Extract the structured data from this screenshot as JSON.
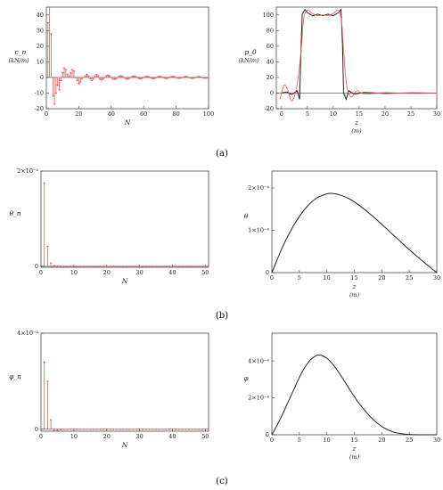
{
  "panel_labels": [
    "(a)",
    "(b)",
    "(c)"
  ],
  "chart_data": [
    {
      "id": "cn",
      "type": "bar",
      "ylabel": "c_n",
      "ylabel_unit": "(kN/m)",
      "xlabel": "N",
      "xlim": [
        0,
        100
      ],
      "ylim": [
        -20,
        45
      ],
      "xticks": [
        0,
        20,
        40,
        60,
        80,
        100
      ],
      "yticks": [
        -20,
        -10,
        0,
        10,
        20,
        30,
        40
      ],
      "color": "#e8585c",
      "x": [
        1,
        2,
        3,
        4,
        5,
        6,
        7,
        8,
        9,
        10,
        11,
        12,
        13,
        14,
        15,
        16,
        17,
        18,
        19,
        20,
        21,
        22,
        23,
        24,
        25,
        26,
        27,
        28,
        29,
        30,
        31,
        32,
        33,
        34,
        35,
        36,
        37,
        38,
        39,
        40,
        41,
        42,
        43,
        44,
        45,
        46,
        47,
        48,
        49,
        50,
        51,
        52,
        53,
        54,
        55,
        56,
        57,
        58,
        59,
        60,
        61,
        62,
        63,
        64,
        65,
        66,
        67,
        68,
        69,
        70,
        71,
        72,
        73,
        74,
        75,
        76,
        77,
        78,
        79,
        80,
        81,
        82,
        83,
        84,
        85,
        86,
        87,
        88,
        89,
        90,
        91,
        92,
        93,
        94,
        95,
        96,
        97,
        98,
        99,
        100
      ],
      "values": [
        35,
        45,
        28,
        -12,
        -17,
        -10,
        -5,
        -8,
        -2,
        3,
        6,
        5,
        2,
        1,
        3,
        5,
        4,
        0,
        -2,
        -4,
        -3,
        -1,
        0,
        1,
        2,
        1,
        -1,
        -2,
        -1,
        1,
        2,
        1,
        -1,
        -1.5,
        -1,
        0,
        1,
        1.5,
        1,
        0,
        -1,
        -1.2,
        -0.8,
        0,
        0.8,
        1.1,
        0.7,
        0,
        -0.7,
        -1,
        -0.6,
        0,
        0.6,
        0.9,
        0.6,
        0,
        -0.6,
        -0.9,
        -0.5,
        0,
        0.5,
        0.8,
        0.5,
        0,
        -0.5,
        -0.8,
        -0.5,
        0,
        0.5,
        0.7,
        0.4,
        0,
        -0.4,
        -0.7,
        -0.4,
        0,
        0.4,
        0.7,
        0.4,
        0,
        -0.4,
        -0.6,
        -0.4,
        0,
        0.4,
        0.6,
        0.4,
        0,
        -0.4,
        -0.6,
        -0.3,
        0,
        0.3,
        0.6,
        0.3,
        0,
        -0.3,
        -0.5,
        -0.3,
        0
      ]
    },
    {
      "id": "p0",
      "type": "line",
      "ylabel": "p_0",
      "ylabel_unit": "(kN/m)",
      "xlabel": "z",
      "xlabel_unit": "(m)",
      "xlim": [
        -1,
        30
      ],
      "ylim": [
        -20,
        110
      ],
      "xticks": [
        0,
        5,
        10,
        15,
        20,
        25,
        30
      ],
      "yticks": [
        -20,
        0,
        20,
        40,
        60,
        80,
        100
      ],
      "series": [
        {
          "color": "#222222",
          "profile": "gibbs_sharp",
          "x": [
            0,
            1,
            2,
            3,
            3.5,
            3.7,
            4,
            4.5,
            5,
            6,
            7,
            8,
            9,
            10,
            11,
            11.5,
            11.8,
            12,
            12.5,
            13,
            14,
            16,
            20,
            25,
            30
          ],
          "y": [
            0,
            1.5,
            -2,
            3,
            -8,
            40,
            100,
            107,
            103,
            99,
            101,
            99,
            101,
            99,
            103,
            107,
            60,
            0,
            -8,
            3,
            -1.5,
            0.8,
            -0.5,
            0.3,
            0
          ]
        },
        {
          "color": "#e8585c",
          "profile": "smooth",
          "x": [
            -0.3,
            0.5,
            1.2,
            2,
            3,
            3.8,
            4.3,
            5,
            6,
            7,
            8,
            9,
            10,
            11,
            11.6,
            12,
            12.6,
            13.5,
            14.5,
            16,
            20,
            25,
            30
          ],
          "y": [
            -8,
            10,
            4,
            -10,
            10,
            55,
            95,
            106,
            102,
            99,
            100,
            99,
            102,
            106,
            92,
            55,
            10,
            -5,
            3,
            -1,
            0.5,
            -0.3,
            0
          ]
        }
      ]
    },
    {
      "id": "theta_n",
      "type": "bar",
      "ylabel": "θ_n",
      "xlabel": "N",
      "xlim": [
        0,
        51
      ],
      "ylim": [
        -2e-06,
        0.0002
      ],
      "xticks": [
        0,
        10,
        20,
        30,
        40,
        50
      ],
      "ytick_labels": [
        "0",
        "2×10⁻⁴"
      ],
      "ytick_values": [
        0,
        0.0002
      ],
      "color": "#e8585c",
      "x": [
        1,
        2,
        3,
        4,
        5,
        6,
        7,
        8,
        9,
        10,
        11,
        12,
        13,
        14,
        15,
        16,
        17,
        18,
        19,
        20,
        21,
        22,
        23,
        24,
        25,
        26,
        27,
        28,
        29,
        30,
        31,
        32,
        33,
        34,
        35,
        36,
        37,
        38,
        39,
        40,
        41,
        42,
        43,
        44,
        45,
        46,
        47,
        48,
        49,
        50
      ],
      "values": [
        0.000175,
        4.2e-05,
        7e-06,
        1.5e-06,
        5e-07,
        2e-07,
        1e-07,
        0,
        0,
        0,
        0,
        0,
        0,
        0,
        0,
        0,
        0,
        0,
        0,
        0,
        0,
        0,
        0,
        0,
        0,
        0,
        0,
        0,
        0,
        0,
        0,
        0,
        0,
        0,
        0,
        0,
        0,
        0,
        0,
        0,
        0,
        0,
        0,
        0,
        0,
        0,
        0,
        0,
        0,
        0
      ]
    },
    {
      "id": "theta",
      "type": "line",
      "ylabel": "θ",
      "xlabel": "z",
      "xlabel_unit": "(m)",
      "xlim": [
        0,
        30
      ],
      "ylim": [
        0,
        0.00024
      ],
      "xticks": [
        0,
        5,
        10,
        15,
        20,
        25,
        30
      ],
      "ytick_labels": [
        "0",
        "1×10⁻⁴",
        "2×10⁻⁴"
      ],
      "ytick_values": [
        0,
        0.0001,
        0.0002
      ],
      "series": [
        {
          "color": "#222222",
          "x": [
            0,
            2,
            4,
            6,
            8,
            10,
            11,
            12,
            14,
            16,
            18,
            20,
            22,
            24,
            26,
            28,
            30
          ],
          "y": [
            0,
            6.2e-05,
            0.000112,
            0.00015,
            0.000175,
            0.000186,
            0.000187,
            0.000185,
            0.000175,
            0.000158,
            0.000137,
            0.000114,
            9e-05,
            6.6e-05,
            4.3e-05,
            2.1e-05,
            0
          ]
        }
      ]
    },
    {
      "id": "phi_n",
      "type": "bar",
      "ylabel": "φ_n",
      "xlabel": "N",
      "xlim": [
        0,
        51
      ],
      "ylim": [
        -8e-06,
        0.0004
      ],
      "xticks": [
        0,
        10,
        20,
        30,
        40,
        50
      ],
      "ytick_labels": [
        "0",
        "4×10⁻⁴"
      ],
      "ytick_values": [
        0,
        0.0004
      ],
      "color": "#e8585c",
      "x": [
        1,
        2,
        3,
        4,
        5,
        6,
        7,
        8,
        9,
        10,
        11,
        12,
        13,
        14,
        15,
        16,
        17,
        18,
        19,
        20,
        21,
        22,
        23,
        24,
        25,
        26,
        27,
        28,
        29,
        30,
        31,
        32,
        33,
        34,
        35,
        36,
        37,
        38,
        39,
        40,
        41,
        42,
        43,
        44,
        45,
        46,
        47,
        48,
        49,
        50
      ],
      "values": [
        0.00028,
        0.0002,
        4e-05,
        -5e-06,
        -4e-06,
        -2e-06,
        -1e-06,
        0,
        0,
        0,
        0,
        0,
        0,
        0,
        0,
        0,
        0,
        0,
        0,
        0,
        0,
        0,
        0,
        0,
        0,
        0,
        0,
        0,
        0,
        0,
        0,
        0,
        0,
        0,
        0,
        0,
        0,
        0,
        0,
        0,
        0,
        0,
        0,
        0,
        0,
        0,
        0,
        0,
        0,
        0
      ]
    },
    {
      "id": "phi",
      "type": "line",
      "ylabel": "φ",
      "xlabel": "z",
      "xlabel_unit": "(m)",
      "xlim": [
        0,
        30
      ],
      "ylim": [
        0,
        0.00055
      ],
      "xticks": [
        0,
        5,
        10,
        15,
        20,
        25,
        30
      ],
      "ytick_labels": [
        "0",
        "2×10⁻⁴",
        "4×10⁻⁴"
      ],
      "ytick_values": [
        0,
        0.0002,
        0.0004
      ],
      "series": [
        {
          "color": "#222222",
          "x": [
            0,
            1,
            2,
            3,
            4,
            5,
            6,
            7,
            8,
            8.5,
            9,
            10,
            11,
            12,
            13,
            14,
            15,
            16,
            18,
            20,
            22,
            24,
            26,
            28,
            30
          ],
          "y": [
            0,
            5.5e-05,
            0.000115,
            0.00018,
            0.000245,
            0.00031,
            0.000365,
            0.000405,
            0.000428,
            0.000431,
            0.00043,
            0.000415,
            0.000385,
            0.000345,
            0.0003,
            0.000253,
            0.000207,
            0.000165,
            9.5e-05,
            4.5e-05,
            1.6e-05,
            4e-06,
            5e-07,
            0,
            0
          ]
        }
      ]
    }
  ]
}
